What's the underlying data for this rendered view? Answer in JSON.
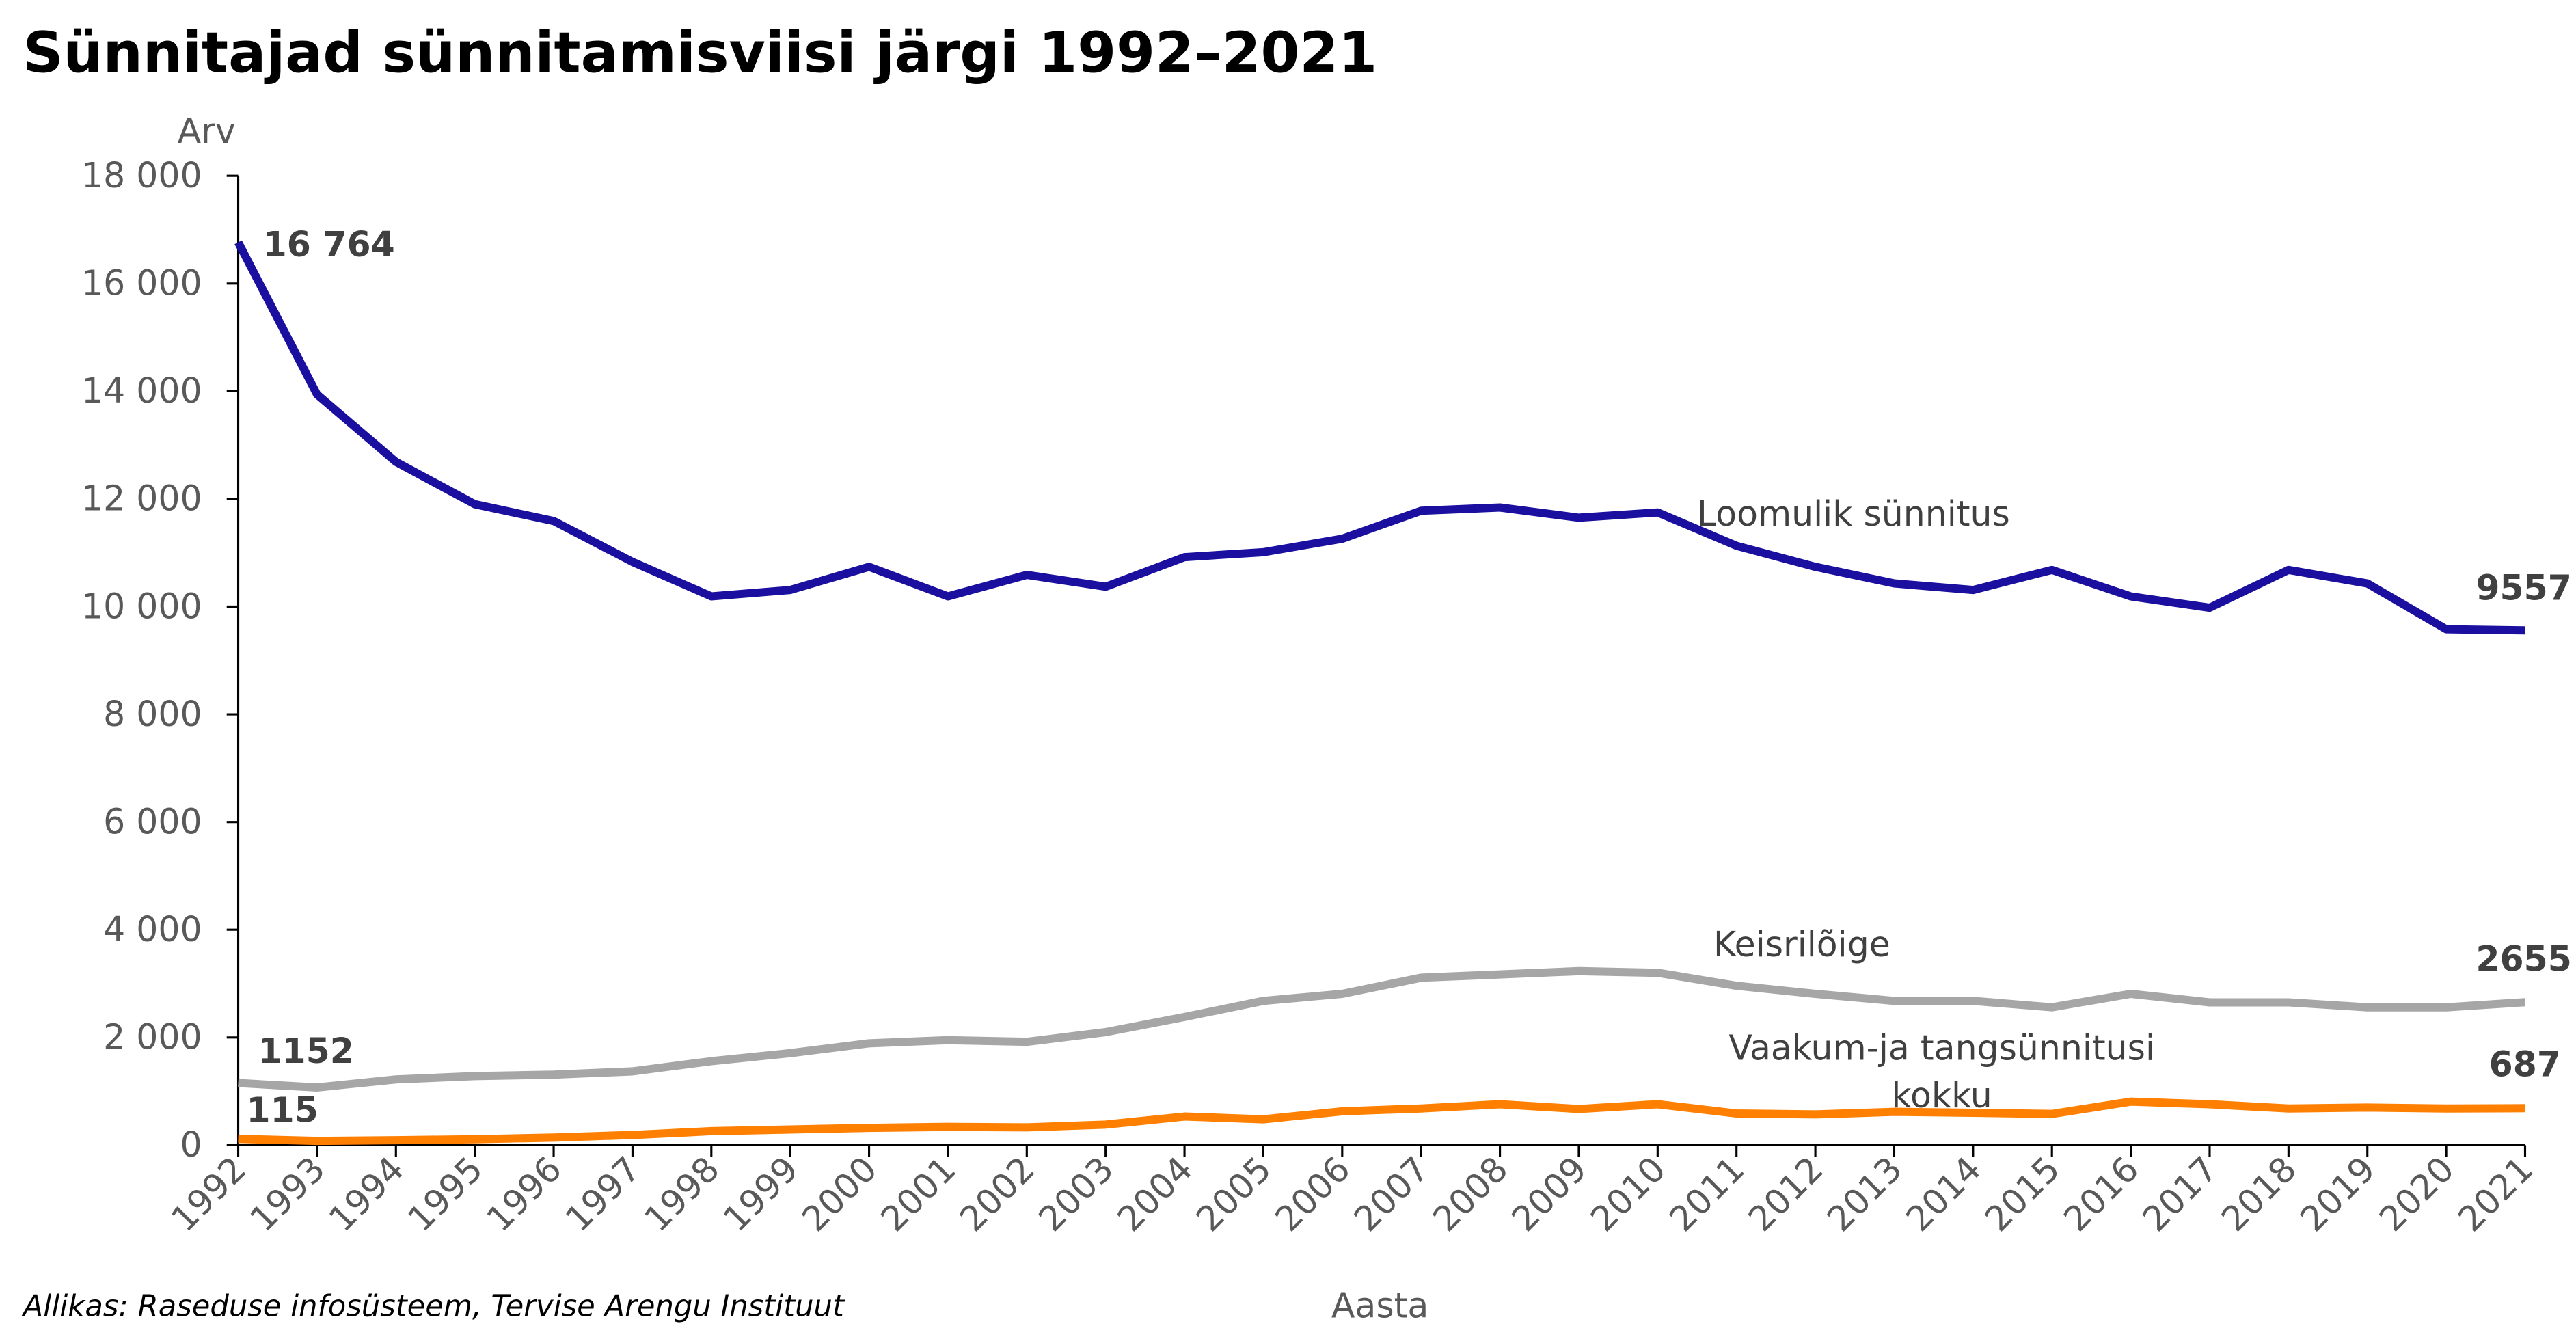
{
  "chart_data": {
    "type": "line",
    "title": "Sünnitajad sünnitamisviisi järgi 1992–2021",
    "ylabel": "Arv",
    "xlabel": "Aasta",
    "source": "Allikas: Raseduse infosüsteem, Tervise Arengu Instituut",
    "ylim": [
      0,
      18000
    ],
    "yticks": [
      0,
      2000,
      4000,
      6000,
      8000,
      10000,
      12000,
      14000,
      16000,
      18000
    ],
    "ytick_labels": [
      "0",
      "2 000",
      "4 000",
      "6 000",
      "8 000",
      "10 000",
      "12 000",
      "14 000",
      "16 000",
      "18 000"
    ],
    "grid": false,
    "legend": "none (inline series labels)",
    "x": [
      "1992",
      "1993",
      "1994",
      "1995",
      "1996",
      "1997",
      "1998",
      "1999",
      "2000",
      "2001",
      "2002",
      "2003",
      "2004",
      "2005",
      "2006",
      "2007",
      "2008",
      "2009",
      "2010",
      "2011",
      "2012",
      "2013",
      "2014",
      "2015",
      "2016",
      "2017",
      "2018",
      "2019",
      "2020",
      "2021"
    ],
    "series": [
      {
        "name": "Loomulik sünnitus",
        "color": "#1a0f9e",
        "values": [
          16764,
          13940,
          12690,
          11900,
          11590,
          10830,
          10190,
          10310,
          10740,
          10190,
          10590,
          10370,
          10920,
          11010,
          11260,
          11780,
          11840,
          11650,
          11750,
          11130,
          10740,
          10430,
          10310,
          10680,
          10190,
          9980,
          10680,
          10430,
          9580,
          9557
        ],
        "first_label": "16 764",
        "last_label": "9557"
      },
      {
        "name": "Keisrilõige",
        "color": "#a6a6a6",
        "values": [
          1152,
          1070,
          1220,
          1280,
          1310,
          1370,
          1560,
          1710,
          1890,
          1950,
          1920,
          2100,
          2380,
          2680,
          2810,
          3110,
          3170,
          3230,
          3200,
          2960,
          2810,
          2680,
          2680,
          2560,
          2810,
          2650,
          2650,
          2560,
          2560,
          2655
        ],
        "first_label": "1152",
        "last_label": "2655"
      },
      {
        "name": "Vaakum-ja tangsünnitusi kokku",
        "name_lines": [
          "Vaakum-ja tangsünnitusi",
          "kokku"
        ],
        "color": "#ff7f00",
        "values": [
          115,
          80,
          90,
          110,
          140,
          190,
          260,
          290,
          320,
          340,
          330,
          380,
          530,
          480,
          630,
          680,
          760,
          670,
          760,
          590,
          570,
          620,
          600,
          580,
          810,
          760,
          680,
          700,
          680,
          687
        ],
        "first_label": "115",
        "last_label": "687"
      }
    ]
  }
}
